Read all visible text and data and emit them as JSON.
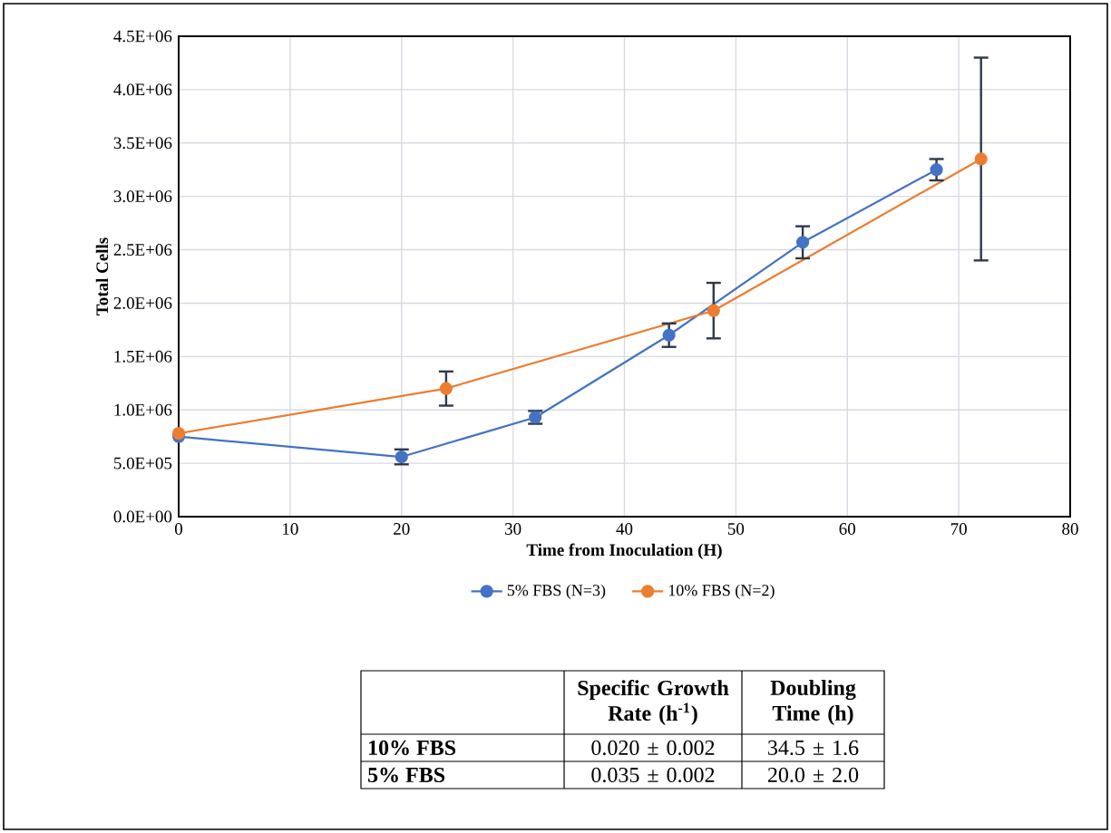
{
  "chart_data": {
    "type": "line",
    "xlabel": "Time from Inoculation (H)",
    "ylabel": "Total Cells",
    "xlim": [
      0,
      80
    ],
    "xticks": [
      0,
      10,
      20,
      30,
      40,
      50,
      60,
      70,
      80
    ],
    "ylim": [
      0,
      4500000
    ],
    "yticks": [
      {
        "value": 0,
        "label": "0.0E+00"
      },
      {
        "value": 500000,
        "label": "5.0E+05"
      },
      {
        "value": 1000000,
        "label": "1.0E+06"
      },
      {
        "value": 1500000,
        "label": "1.5E+06"
      },
      {
        "value": 2000000,
        "label": "2.0E+06"
      },
      {
        "value": 2500000,
        "label": "2.5E+06"
      },
      {
        "value": 3000000,
        "label": "3.0E+06"
      },
      {
        "value": 3500000,
        "label": "3.5E+06"
      },
      {
        "value": 4000000,
        "label": "4.0E+06"
      },
      {
        "value": 4500000,
        "label": "4.5E+06"
      }
    ],
    "grid": true,
    "legend": "bottom",
    "marker": "circle",
    "line_style": "solid",
    "series": [
      {
        "name": "5% FBS (N=3)",
        "color": "#4472c4",
        "x": [
          0,
          20,
          32,
          44,
          56,
          68
        ],
        "values": [
          750000,
          560000,
          930000,
          1700000,
          2570000,
          3250000
        ],
        "errors": [
          null,
          70000,
          60000,
          110000,
          150000,
          100000
        ]
      },
      {
        "name": "10% FBS (N=2)",
        "color": "#ed7d31",
        "x": [
          0,
          24,
          48,
          72
        ],
        "values": [
          780000,
          1200000,
          1930000,
          3350000
        ],
        "errors": [
          null,
          160000,
          260000,
          950000
        ]
      }
    ],
    "annotations": [
      "Specific Growth Rate (h$^{-1}$)",
      "Doubling Time (h)",
      "10% FBS",
      "0.020 ± 0.002",
      "34.5 ± 1.6",
      "5% FBS",
      "0.035 ± 0.002",
      "20.0 ± 2.0"
    ]
  }
}
